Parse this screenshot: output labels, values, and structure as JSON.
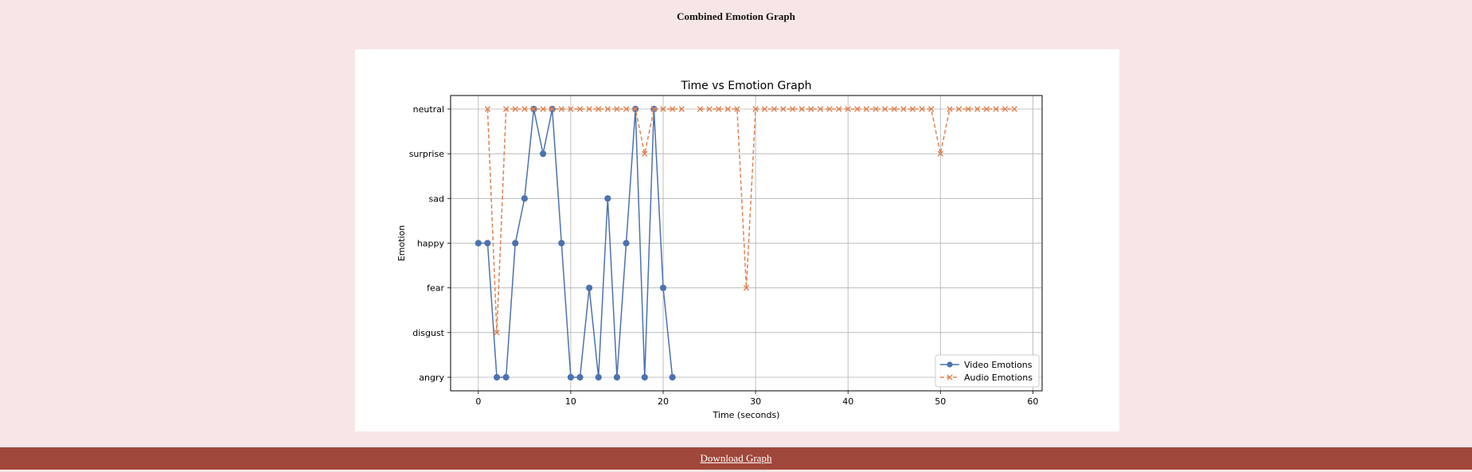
{
  "page": {
    "title": "Combined Emotion Graph",
    "download_label": "Download Graph"
  },
  "chart_data": {
    "type": "line",
    "title": "Time vs Emotion Graph",
    "xlabel": "Time (seconds)",
    "ylabel": "Emotion",
    "xlim": [
      -3,
      61
    ],
    "x_ticks": [
      0,
      10,
      20,
      30,
      40,
      50,
      60
    ],
    "categories": [
      "angry",
      "disgust",
      "fear",
      "happy",
      "sad",
      "surprise",
      "neutral"
    ],
    "grid": true,
    "legend_position": "bottom-right",
    "series": [
      {
        "name": "Video Emotions",
        "color": "#4c72b0",
        "line_style": "solid",
        "marker": "circle",
        "x": [
          0,
          1,
          2,
          3,
          4,
          5,
          6,
          7,
          8,
          9,
          10,
          11,
          12,
          13,
          14,
          15,
          16,
          17,
          18,
          19,
          20,
          21
        ],
        "y": [
          "happy",
          "happy",
          "angry",
          "angry",
          "happy",
          "sad",
          "neutral",
          "surprise",
          "neutral",
          "happy",
          "angry",
          "angry",
          "fear",
          "angry",
          "sad",
          "angry",
          "happy",
          "neutral",
          "angry",
          "neutral",
          "fear",
          "angry"
        ]
      },
      {
        "name": "Audio Emotions",
        "color": "#dd8452",
        "line_style": "dashed",
        "marker": "x",
        "segments": [
          {
            "x": [
              1,
              2,
              3,
              4,
              5,
              6,
              7,
              8,
              9,
              10,
              11,
              12,
              13,
              14,
              15,
              16,
              17,
              18,
              19,
              20,
              21,
              22
            ],
            "y": [
              "neutral",
              "disgust",
              "neutral",
              "neutral",
              "neutral",
              "neutral",
              "neutral",
              "neutral",
              "neutral",
              "neutral",
              "neutral",
              "neutral",
              "neutral",
              "neutral",
              "neutral",
              "neutral",
              "neutral",
              "surprise",
              "neutral",
              "neutral",
              "neutral",
              "neutral"
            ]
          },
          {
            "x": [
              24,
              25,
              26,
              27,
              28,
              29,
              30,
              31,
              32,
              33,
              34,
              35,
              36,
              37,
              38,
              39,
              40,
              41,
              42,
              43,
              44,
              45,
              46,
              47,
              48,
              49,
              50,
              51,
              52,
              53,
              54,
              55,
              56,
              57,
              58
            ],
            "y": [
              "neutral",
              "neutral",
              "neutral",
              "neutral",
              "neutral",
              "fear",
              "neutral",
              "neutral",
              "neutral",
              "neutral",
              "neutral",
              "neutral",
              "neutral",
              "neutral",
              "neutral",
              "neutral",
              "neutral",
              "neutral",
              "neutral",
              "neutral",
              "neutral",
              "neutral",
              "neutral",
              "neutral",
              "neutral",
              "neutral",
              "surprise",
              "neutral",
              "neutral",
              "neutral",
              "neutral",
              "neutral",
              "neutral",
              "neutral",
              "neutral"
            ]
          }
        ]
      }
    ]
  }
}
